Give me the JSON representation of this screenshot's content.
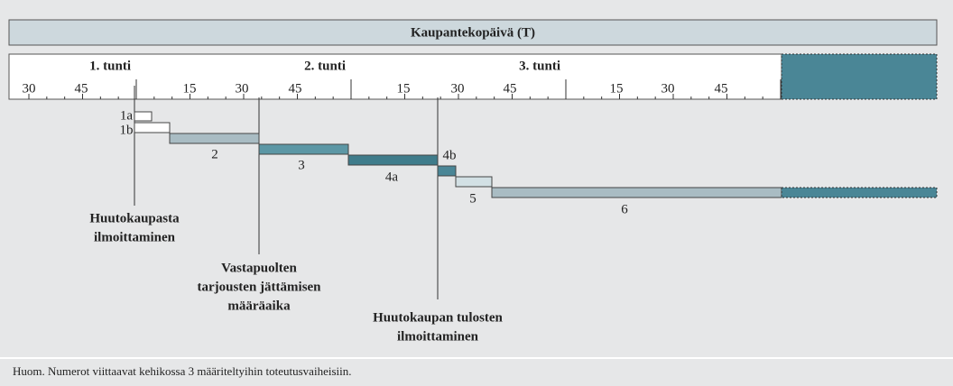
{
  "header": {
    "title": "Kaupantekopäivä (T)"
  },
  "ruler": {
    "hours": [
      "1. tunti",
      "2. tunti",
      "3. tunti"
    ],
    "minutes": [
      "30",
      "45",
      "15",
      "30",
      "45",
      "15",
      "30",
      "45",
      "15",
      "30",
      "45"
    ]
  },
  "phases": [
    "1a",
    "1b",
    "2",
    "3",
    "4a",
    "4b",
    "5",
    "6"
  ],
  "annotations": [
    {
      "lines": [
        "Huutokaupasta",
        "ilmoittaminen"
      ]
    },
    {
      "lines": [
        "Vastapuolten",
        "tarjousten jättämisen",
        "määräaika"
      ]
    },
    {
      "lines": [
        "Huutokaupan tulosten",
        "ilmoittaminen"
      ]
    }
  ],
  "note": "Huom. Numerot viittaavat kehikossa 3 määriteltyihin toteutusvaiheisiin."
}
